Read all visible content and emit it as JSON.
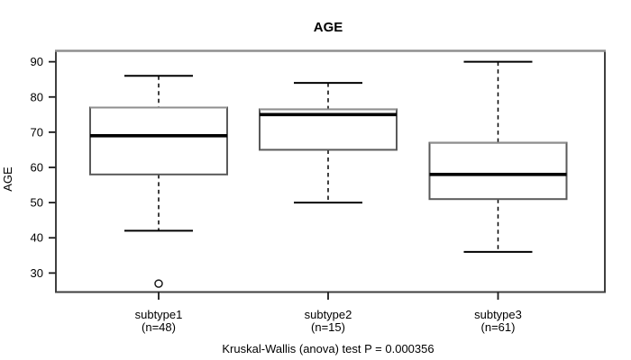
{
  "title": "AGE",
  "y_axis": {
    "label": "AGE",
    "ticks": [
      30,
      40,
      50,
      60,
      70,
      80,
      90
    ]
  },
  "footer": "Kruskal-Wallis (anova) test P = 0.000356",
  "colors": {
    "background": "#ffffff",
    "frame": "#3f3f3f",
    "frame_top": "#8f8f8f",
    "box_stroke": "#5a5a5a",
    "box_top": "#8f8f8f",
    "box_fill": "#ffffff",
    "median": "#000000",
    "whisker": "#000000",
    "tick": "#1a1a1a",
    "text": "#000000"
  },
  "chart_data": {
    "type": "boxplot",
    "title": "AGE",
    "xlabel": "",
    "ylabel": "AGE",
    "ylim": [
      24.6,
      93.1
    ],
    "y_ticks": [
      30,
      40,
      50,
      60,
      70,
      80,
      90
    ],
    "grid": false,
    "legend": "none",
    "categories": [
      "subtype1",
      "subtype2",
      "subtype3"
    ],
    "category_sublabels": [
      "(n=48)",
      "(n=15)",
      "(n=61)"
    ],
    "series": [
      {
        "name": "subtype1",
        "n": 48,
        "whisker_low": 42,
        "q1": 58,
        "median": 69,
        "q3": 77,
        "whisker_high": 86,
        "outliers": [
          27
        ]
      },
      {
        "name": "subtype2",
        "n": 15,
        "whisker_low": 50,
        "q1": 65,
        "median": 75,
        "q3": 76.5,
        "whisker_high": 84,
        "outliers": []
      },
      {
        "name": "subtype3",
        "n": 61,
        "whisker_low": 36,
        "q1": 51,
        "median": 58,
        "q3": 67,
        "whisker_high": 90,
        "outliers": []
      }
    ],
    "annotation": "Kruskal-Wallis (anova) test P = 0.000356"
  }
}
